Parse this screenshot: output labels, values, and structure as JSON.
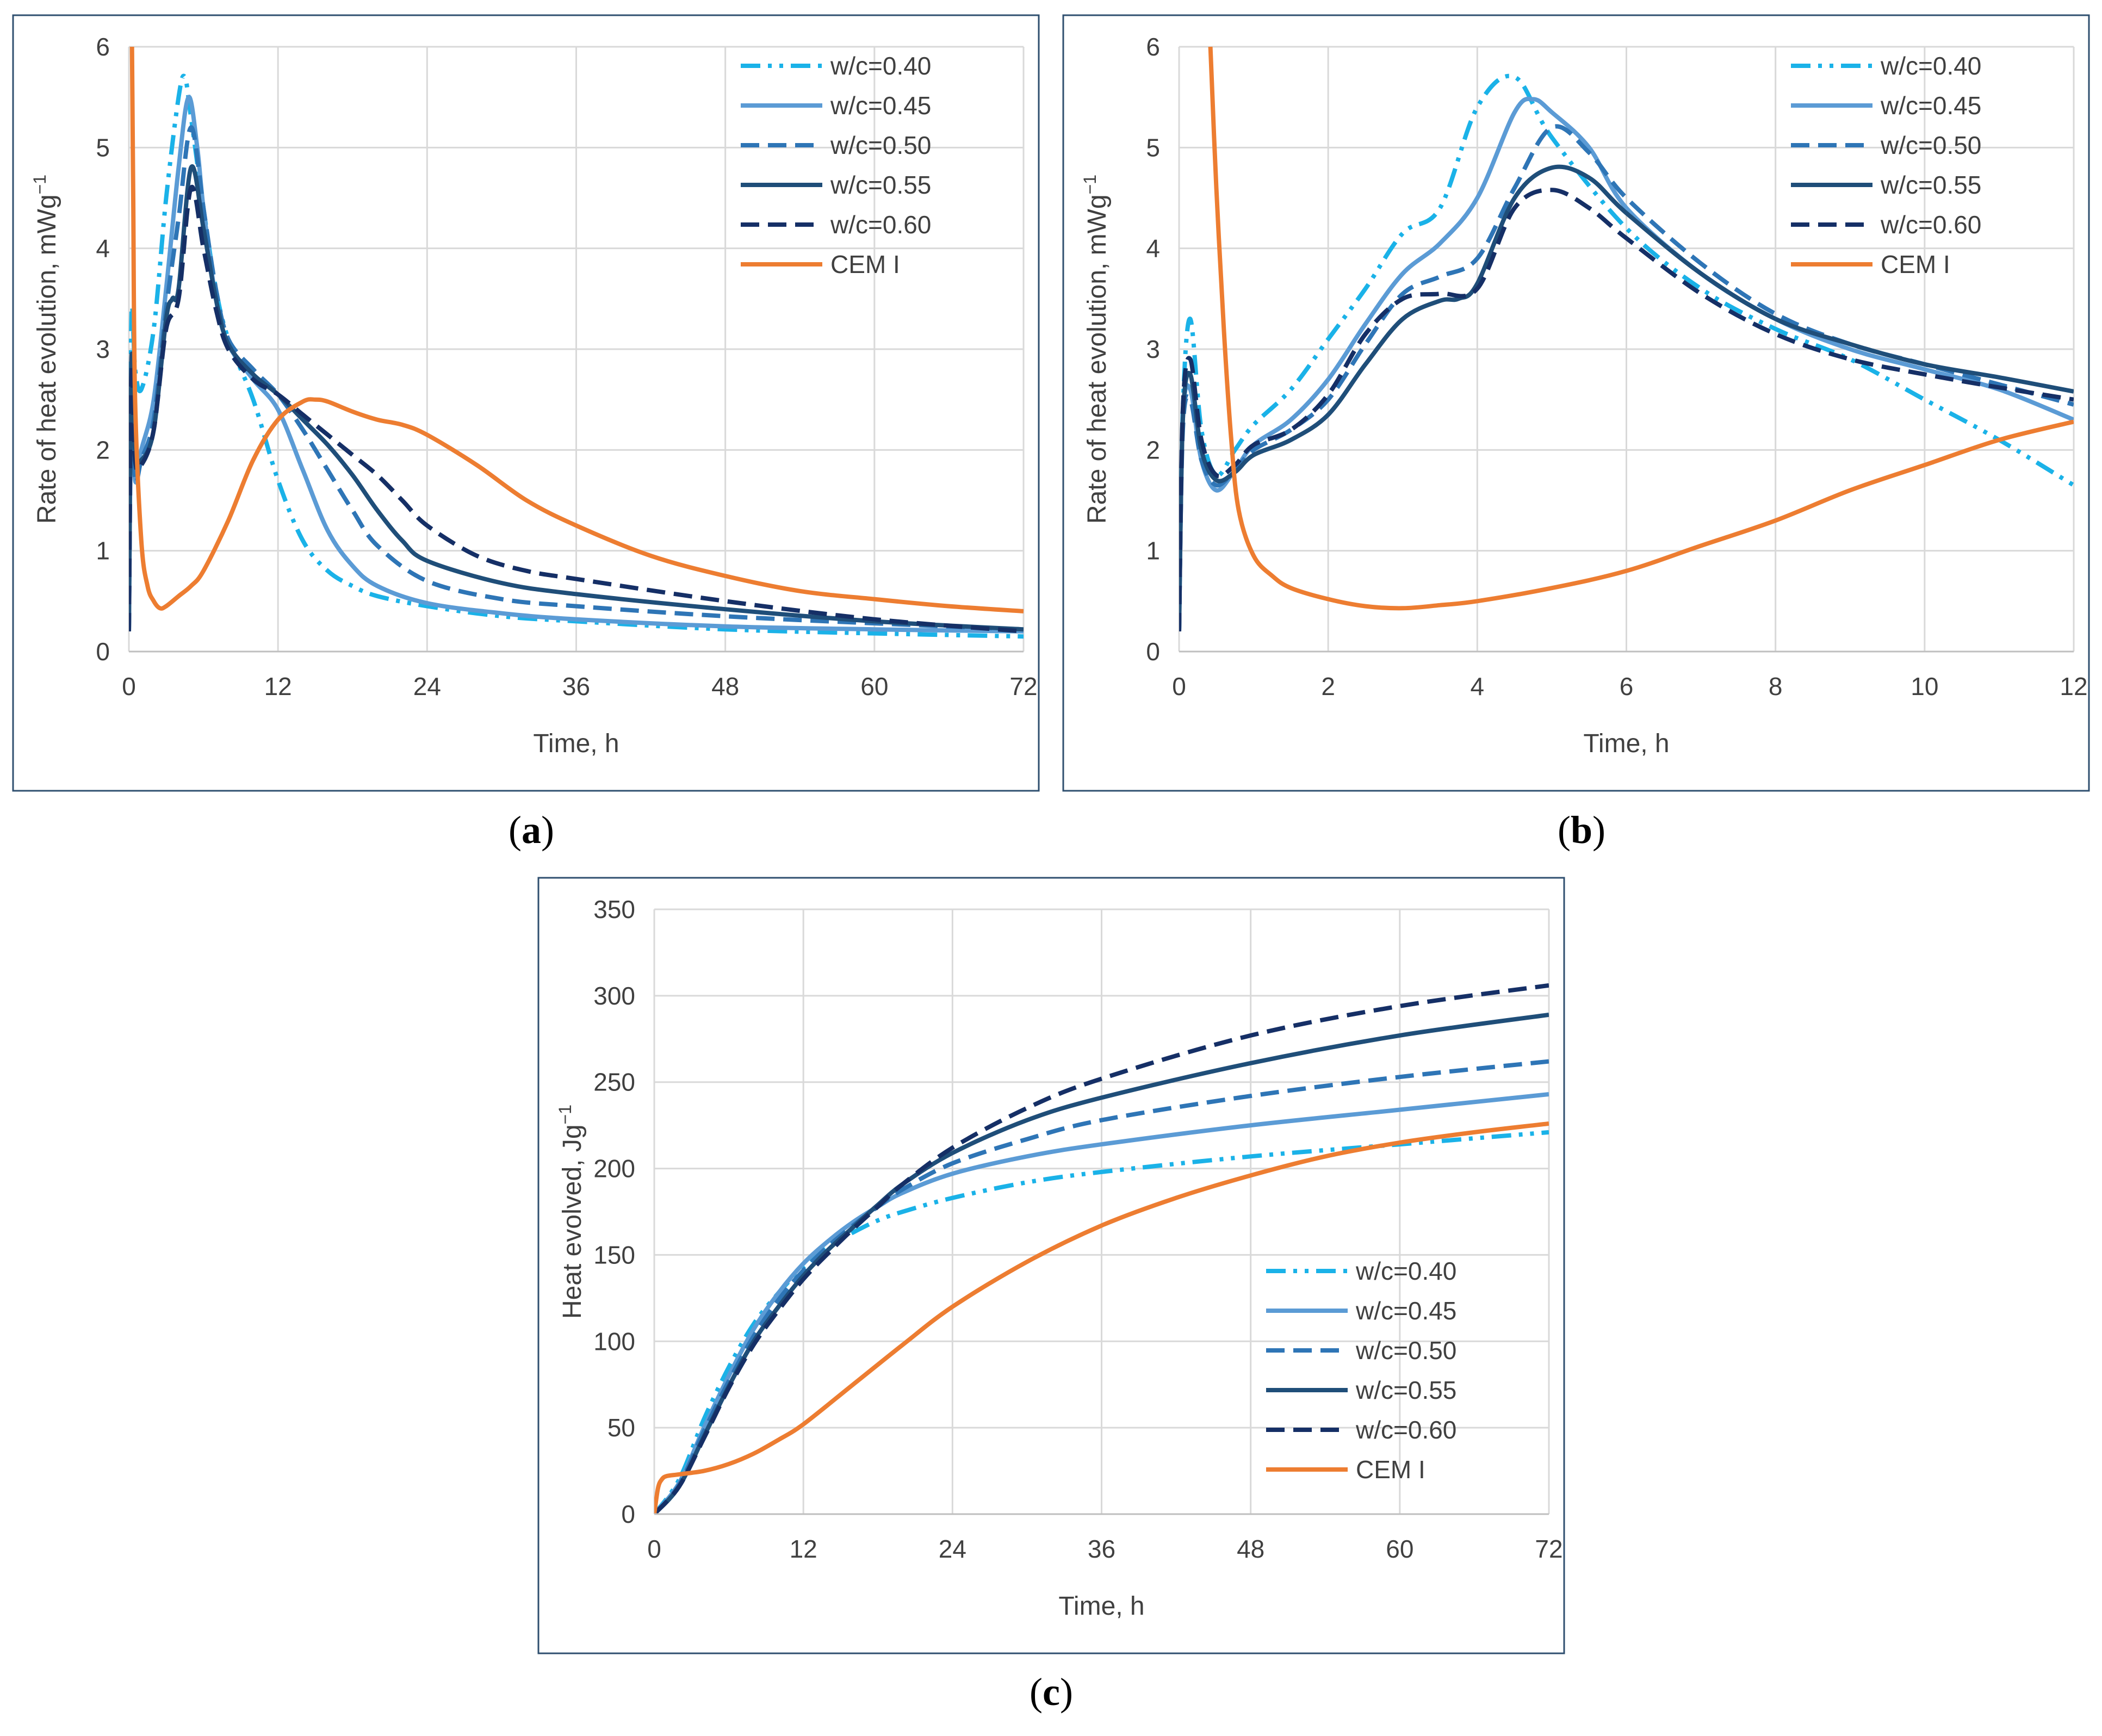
{
  "panels": [
    {
      "label": "a",
      "chart_data": {
        "type": "line",
        "title": "",
        "xlabel": "Time, h",
        "ylabel": "Rate of heat evolution, mWg",
        "ylabel_sup": "−1",
        "xlim": [
          0,
          72
        ],
        "ylim": [
          0,
          6
        ],
        "xticks": [
          0,
          12,
          24,
          36,
          48,
          60,
          72
        ],
        "yticks": [
          0,
          1,
          2,
          3,
          4,
          5,
          6
        ],
        "grid": true,
        "legend": "top-right",
        "series": [
          {
            "name": "w/c=0.40",
            "style": "dashdotdot",
            "color": "#1ab2e8",
            "x": [
              0,
              0.2,
              0.5,
              1,
              2,
              3,
              4,
              4.5,
              5,
              6,
              7,
              8,
              10,
              12,
              14,
              16,
              18,
              20,
              24,
              30,
              36,
              48,
              60,
              72
            ],
            "y": [
              0.2,
              3.3,
              2.8,
              2.6,
              3.2,
              4.5,
              5.5,
              5.7,
              5.3,
              4.4,
              3.6,
              3.1,
              2.5,
              1.7,
              1.1,
              0.8,
              0.65,
              0.55,
              0.45,
              0.35,
              0.3,
              0.22,
              0.18,
              0.15
            ]
          },
          {
            "name": "w/c=0.45",
            "style": "solid",
            "color": "#5b9bd5",
            "x": [
              0,
              0.2,
              0.5,
              1,
              2,
              3,
              4,
              4.8,
              5.5,
              6,
              7,
              8,
              10,
              12,
              14,
              16,
              18,
              20,
              24,
              30,
              36,
              48,
              60,
              72
            ],
            "y": [
              0.2,
              2.6,
              1.7,
              2.0,
              2.5,
              3.6,
              4.8,
              5.5,
              5.0,
              4.4,
              3.5,
              3.05,
              2.7,
              2.4,
              1.8,
              1.2,
              0.85,
              0.65,
              0.48,
              0.38,
              0.32,
              0.25,
              0.22,
              0.2
            ]
          },
          {
            "name": "w/c=0.50",
            "style": "dash",
            "color": "#2e75b6",
            "x": [
              0,
              0.2,
              0.5,
              1,
              2,
              3,
              4,
              5,
              6,
              7,
              8,
              10,
              12,
              14,
              16,
              18,
              20,
              24,
              30,
              36,
              48,
              60,
              72
            ],
            "y": [
              0.2,
              2.5,
              1.7,
              1.9,
              2.3,
              3.4,
              4.3,
              5.2,
              4.4,
              3.6,
              3.1,
              2.8,
              2.55,
              2.2,
              1.8,
              1.4,
              1.05,
              0.7,
              0.52,
              0.45,
              0.35,
              0.28,
              0.22
            ]
          },
          {
            "name": "w/c=0.55",
            "style": "solid",
            "color": "#1f4e79",
            "x": [
              0,
              0.2,
              0.5,
              1,
              2,
              3,
              3.5,
              4,
              5,
              6,
              7,
              8,
              10,
              12,
              14,
              16,
              18,
              20,
              22,
              24,
              30,
              36,
              48,
              60,
              72
            ],
            "y": [
              0.2,
              2.9,
              2.0,
              1.9,
              2.2,
              3.3,
              3.5,
              3.6,
              4.8,
              4.2,
              3.5,
              3.05,
              2.75,
              2.55,
              2.3,
              2.05,
              1.75,
              1.4,
              1.1,
              0.9,
              0.68,
              0.57,
              0.42,
              0.3,
              0.22
            ]
          },
          {
            "name": "w/c=0.60",
            "style": "dash",
            "color": "#152f66",
            "x": [
              0,
              0.2,
              0.5,
              1,
              2,
              3,
              4,
              5,
              6,
              7,
              8,
              10,
              12,
              14,
              16,
              18,
              20,
              22,
              24,
              28,
              32,
              36,
              48,
              60,
              72
            ],
            "y": [
              0.2,
              2.8,
              1.9,
              1.85,
              2.2,
              3.2,
              3.5,
              4.6,
              4.0,
              3.4,
              3.0,
              2.7,
              2.55,
              2.35,
              2.15,
              1.95,
              1.75,
              1.5,
              1.25,
              0.95,
              0.8,
              0.72,
              0.5,
              0.32,
              0.2
            ]
          },
          {
            "name": "CEM I",
            "style": "solid",
            "color": "#ed7d31",
            "x": [
              0.25,
              0.35,
              0.5,
              1,
              1.5,
              2,
              2.5,
              3,
              4,
              5,
              6,
              8,
              10,
              12,
              14,
              15,
              16,
              18,
              20,
              22,
              24,
              28,
              32,
              36,
              42,
              48,
              54,
              60,
              66,
              72
            ],
            "y": [
              6,
              4.5,
              2.5,
              1.1,
              0.65,
              0.5,
              0.43,
              0.45,
              0.55,
              0.65,
              0.8,
              1.3,
              1.9,
              2.3,
              2.48,
              2.5,
              2.48,
              2.38,
              2.3,
              2.25,
              2.15,
              1.85,
              1.5,
              1.25,
              0.95,
              0.75,
              0.6,
              0.52,
              0.45,
              0.4
            ]
          }
        ]
      }
    },
    {
      "label": "b",
      "chart_data": {
        "type": "line",
        "title": "",
        "xlabel": "Time, h",
        "ylabel": "Rate of heat evolution, mWg",
        "ylabel_sup": "−1",
        "xlim": [
          0,
          12
        ],
        "ylim": [
          0,
          6
        ],
        "xticks": [
          0,
          2,
          4,
          6,
          8,
          10,
          12
        ],
        "yticks": [
          0,
          1,
          2,
          3,
          4,
          5,
          6
        ],
        "grid": true,
        "legend": "top-right",
        "series": [
          {
            "name": "w/c=0.40",
            "style": "dashdotdot",
            "color": "#1ab2e8",
            "x": [
              0,
              0.05,
              0.15,
              0.3,
              0.5,
              0.75,
              1,
              1.5,
              2,
              2.5,
              3,
              3.5,
              4,
              4.5,
              5,
              6,
              7,
              8,
              9,
              10,
              11,
              12
            ],
            "y": [
              0.2,
              2.4,
              3.3,
              2.2,
              1.75,
              2.0,
              2.25,
              2.6,
              3.1,
              3.6,
              4.15,
              4.4,
              5.4,
              5.7,
              5.1,
              4.2,
              3.6,
              3.2,
              2.9,
              2.5,
              2.1,
              1.65
            ]
          },
          {
            "name": "w/c=0.45",
            "style": "solid",
            "color": "#5b9bd5",
            "x": [
              0,
              0.05,
              0.15,
              0.3,
              0.5,
              0.75,
              1,
              1.5,
              2,
              2.5,
              3,
              3.5,
              4,
              4.5,
              4.75,
              5,
              5.5,
              6,
              7,
              8,
              9,
              10,
              11,
              12
            ],
            "y": [
              0.2,
              2.3,
              2.6,
              1.9,
              1.6,
              1.8,
              2.05,
              2.3,
              2.7,
              3.25,
              3.75,
              4.05,
              4.5,
              5.35,
              5.48,
              5.35,
              5.0,
              4.4,
              3.75,
              3.3,
              3.0,
              2.8,
              2.6,
              2.3
            ]
          },
          {
            "name": "w/c=0.50",
            "style": "dash",
            "color": "#2e75b6",
            "x": [
              0,
              0.05,
              0.15,
              0.3,
              0.5,
              0.75,
              1,
              1.5,
              2,
              2.5,
              3,
              3.5,
              4,
              4.5,
              5,
              5.5,
              6,
              7,
              8,
              9,
              10,
              11,
              12
            ],
            "y": [
              0.2,
              2.2,
              2.5,
              1.9,
              1.65,
              1.8,
              2.0,
              2.2,
              2.5,
              3.05,
              3.55,
              3.72,
              3.9,
              4.6,
              5.2,
              4.95,
              4.5,
              3.85,
              3.35,
              3.05,
              2.85,
              2.65,
              2.45
            ]
          },
          {
            "name": "w/c=0.55",
            "style": "solid",
            "color": "#1f4e79",
            "x": [
              0,
              0.05,
              0.15,
              0.3,
              0.5,
              0.75,
              1,
              1.5,
              2,
              2.5,
              3,
              3.5,
              3.75,
              4,
              4.5,
              5,
              5.5,
              6,
              7,
              8,
              9,
              10,
              11,
              12
            ],
            "y": [
              0.2,
              2.3,
              2.75,
              2.0,
              1.7,
              1.78,
              1.95,
              2.1,
              2.35,
              2.85,
              3.3,
              3.48,
              3.5,
              3.65,
              4.5,
              4.8,
              4.7,
              4.35,
              3.75,
              3.3,
              3.05,
              2.85,
              2.72,
              2.58
            ]
          },
          {
            "name": "w/c=0.60",
            "style": "dash",
            "color": "#152f66",
            "x": [
              0,
              0.05,
              0.15,
              0.3,
              0.5,
              0.75,
              1,
              1.5,
              2,
              2.5,
              3,
              3.5,
              4,
              4.5,
              5,
              5.5,
              6,
              7,
              8,
              9,
              10,
              11,
              12
            ],
            "y": [
              0.2,
              2.4,
              2.9,
              2.1,
              1.75,
              1.85,
              2.05,
              2.2,
              2.55,
              3.15,
              3.5,
              3.55,
              3.6,
              4.4,
              4.58,
              4.4,
              4.1,
              3.55,
              3.15,
              2.9,
              2.75,
              2.62,
              2.5
            ]
          },
          {
            "name": "CEM I",
            "style": "solid",
            "color": "#ed7d31",
            "x": [
              0.42,
              0.5,
              0.6,
              0.7,
              0.8,
              1,
              1.25,
              1.5,
              2,
              2.5,
              3,
              3.5,
              4,
              5,
              6,
              7,
              8,
              9,
              10,
              11,
              12
            ],
            "y": [
              6,
              4.6,
              3.2,
              2.1,
              1.4,
              0.95,
              0.75,
              0.63,
              0.52,
              0.45,
              0.43,
              0.46,
              0.5,
              0.63,
              0.8,
              1.05,
              1.3,
              1.6,
              1.85,
              2.1,
              2.28
            ]
          }
        ]
      }
    },
    {
      "label": "c",
      "chart_data": {
        "type": "line",
        "title": "",
        "xlabel": "Time, h",
        "ylabel": "Heat evolved, Jg",
        "ylabel_sup": "−1",
        "xlim": [
          0,
          72
        ],
        "ylim": [
          0,
          350
        ],
        "xticks": [
          0,
          12,
          24,
          36,
          48,
          60,
          72
        ],
        "yticks": [
          0,
          50,
          100,
          150,
          200,
          250,
          300,
          350
        ],
        "grid": true,
        "legend": "bottom-right",
        "series": [
          {
            "name": "w/c=0.40",
            "style": "dashdotdot",
            "color": "#1ab2e8",
            "x": [
              0,
              2,
              4,
              6,
              8,
              10,
              12,
              14,
              16,
              18,
              20,
              24,
              30,
              36,
              48,
              60,
              72
            ],
            "y": [
              0,
              20,
              55,
              85,
              110,
              128,
              143,
              155,
              163,
              170,
              175,
              183,
              192,
              198,
              207,
              214,
              221
            ]
          },
          {
            "name": "w/c=0.45",
            "style": "solid",
            "color": "#5b9bd5",
            "x": [
              0,
              2,
              4,
              6,
              8,
              10,
              12,
              14,
              16,
              18,
              20,
              24,
              30,
              36,
              48,
              60,
              72
            ],
            "y": [
              0,
              18,
              50,
              80,
              107,
              128,
              145,
              158,
              169,
              178,
              186,
              197,
              207,
              214,
              225,
              234,
              243
            ]
          },
          {
            "name": "w/c=0.50",
            "style": "dash",
            "color": "#2e75b6",
            "x": [
              0,
              2,
              4,
              6,
              8,
              10,
              12,
              14,
              16,
              18,
              20,
              24,
              30,
              36,
              48,
              60,
              72
            ],
            "y": [
              0,
              17,
              48,
              77,
              103,
              124,
              141,
              155,
              167,
              178,
              188,
              203,
              217,
              228,
              242,
              253,
              262
            ]
          },
          {
            "name": "w/c=0.55",
            "style": "solid",
            "color": "#1f4e79",
            "x": [
              0,
              2,
              4,
              6,
              8,
              10,
              12,
              14,
              16,
              18,
              20,
              24,
              30,
              36,
              48,
              60,
              72
            ],
            "y": [
              0,
              16,
              45,
              74,
              100,
              120,
              138,
              153,
              166,
              179,
              191,
              209,
              228,
              241,
              261,
              277,
              289
            ]
          },
          {
            "name": "w/c=0.60",
            "style": "dash",
            "color": "#152f66",
            "x": [
              0,
              2,
              4,
              6,
              8,
              10,
              12,
              14,
              16,
              18,
              20,
              24,
              30,
              36,
              48,
              60,
              72
            ],
            "y": [
              0,
              16,
              44,
              73,
              98,
              118,
              136,
              151,
              165,
              178,
              191,
              212,
              235,
              252,
              277,
              294,
              306
            ]
          },
          {
            "name": "CEM I",
            "style": "solid",
            "color": "#ed7d31",
            "x": [
              0,
              0.3,
              0.6,
              1,
              2,
              4,
              6,
              8,
              10,
              12,
              16,
              20,
              24,
              30,
              36,
              42,
              48,
              54,
              60,
              66,
              72
            ],
            "y": [
              0,
              15,
              20,
              22,
              23,
              25,
              29,
              35,
              43,
              52,
              75,
              98,
              120,
              146,
              167,
              183,
              196,
              207,
              215,
              221,
              226
            ]
          }
        ]
      }
    }
  ]
}
